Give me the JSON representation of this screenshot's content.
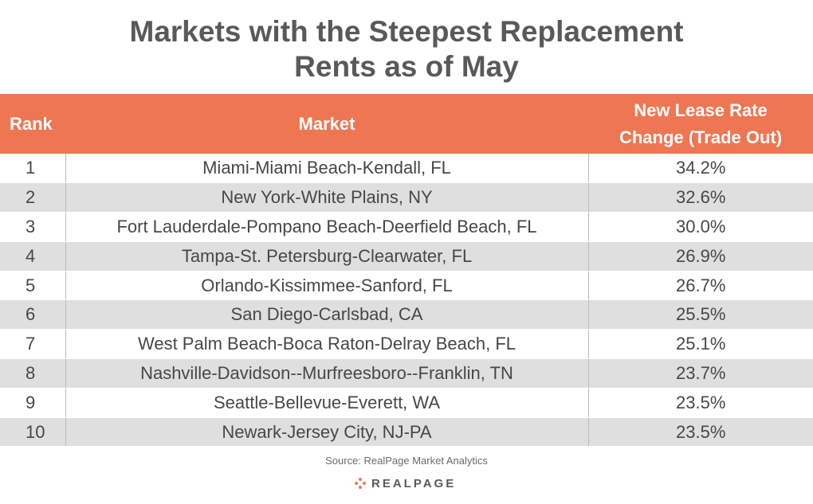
{
  "title": {
    "line1": "Markets with the Steepest Replacement",
    "line2": "Rents as of May"
  },
  "table": {
    "headers": {
      "rank": "Rank",
      "market": "Market",
      "rate_line1": "New Lease Rate",
      "rate_line2": "Change (Trade Out)"
    },
    "rows": [
      {
        "rank": "1",
        "market": "Miami-Miami Beach-Kendall, FL",
        "rate": "34.2%"
      },
      {
        "rank": "2",
        "market": "New York-White Plains, NY",
        "rate": "32.6%"
      },
      {
        "rank": "3",
        "market": "Fort Lauderdale-Pompano Beach-Deerfield Beach, FL",
        "rate": "30.0%"
      },
      {
        "rank": "4",
        "market": "Tampa-St. Petersburg-Clearwater, FL",
        "rate": "26.9%"
      },
      {
        "rank": "5",
        "market": "Orlando-Kissimmee-Sanford, FL",
        "rate": "26.7%"
      },
      {
        "rank": "6",
        "market": "San Diego-Carlsbad, CA",
        "rate": "25.5%"
      },
      {
        "rank": "7",
        "market": "West Palm Beach-Boca Raton-Delray Beach, FL",
        "rate": "25.1%"
      },
      {
        "rank": "8",
        "market": "Nashville-Davidson--Murfreesboro--Franklin, TN",
        "rate": "23.7%"
      },
      {
        "rank": "9",
        "market": "Seattle-Bellevue-Everett, WA",
        "rate": "23.5%"
      },
      {
        "rank": "10",
        "market": "Newark-Jersey City, NJ-PA",
        "rate": "23.5%"
      }
    ]
  },
  "source": "Source: RealPage Market Analytics",
  "logo": {
    "text": "REALPAGE",
    "icon": "realpage-dots-icon"
  },
  "colors": {
    "header_bg": "#ee7653",
    "title_text": "#58595b",
    "row_alt_bg": "#dfdfdf",
    "logo_accent": "#ee7653"
  }
}
